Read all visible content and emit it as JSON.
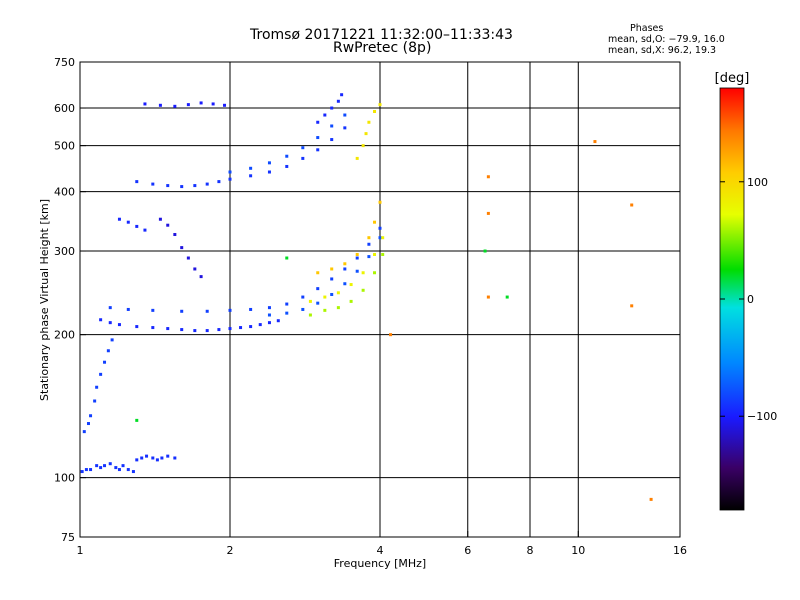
{
  "header": {
    "title": "Tromsø 20171221 11:32:00–11:33:43",
    "subtitle": "RwPretec (8p)"
  },
  "phase_stats": {
    "heading": "Phases",
    "line_o": "mean, sd,O: −79.9, 16.0",
    "line_x": "mean, sd,X:  96.2, 19.3"
  },
  "chart_data": {
    "type": "scatter",
    "title": "Tromsø 20171221 11:32:00–11:33:43",
    "subtitle": "RwPretec (8p)",
    "xlabel": "Frequency [MHz]",
    "ylabel": "Stationary phase Virtual Height [km]",
    "x_scale": "log",
    "y_scale": "log",
    "xlim": [
      1,
      16
    ],
    "ylim": [
      75,
      750
    ],
    "x_ticks": [
      1,
      2,
      4,
      6,
      8,
      10,
      16
    ],
    "x_tick_labels": [
      "1",
      "2",
      "4",
      "6",
      "8",
      "10",
      "16"
    ],
    "y_ticks": [
      75,
      100,
      200,
      300,
      400,
      500,
      600,
      750
    ],
    "y_tick_labels": [
      "75",
      "100",
      "200",
      "300",
      "400",
      "500",
      "600",
      "750"
    ],
    "grid_x": [
      2,
      4,
      6,
      8,
      10
    ],
    "grid_y": [
      100,
      200,
      300,
      400,
      500,
      600
    ],
    "grid": true,
    "colorbar": {
      "label": "[deg]",
      "range": [
        -180,
        180
      ],
      "ticks": [
        100,
        0,
        -100
      ],
      "tick_labels": [
        "100",
        "0",
        "−100"
      ]
    },
    "series": [
      {
        "phase": -90,
        "points": [
          [
            1.01,
            103
          ],
          [
            1.03,
            104
          ],
          [
            1.05,
            104
          ],
          [
            1.08,
            106
          ],
          [
            1.1,
            105
          ],
          [
            1.12,
            106
          ],
          [
            1.15,
            107
          ],
          [
            1.18,
            105
          ],
          [
            1.2,
            104
          ],
          [
            1.22,
            106
          ],
          [
            1.25,
            104
          ],
          [
            1.28,
            103
          ]
        ]
      },
      {
        "phase": -85,
        "points": [
          [
            1.02,
            125
          ],
          [
            1.04,
            130
          ],
          [
            1.05,
            135
          ],
          [
            1.07,
            145
          ],
          [
            1.08,
            155
          ],
          [
            1.1,
            165
          ],
          [
            1.12,
            175
          ],
          [
            1.14,
            185
          ],
          [
            1.16,
            195
          ]
        ]
      },
      {
        "phase": -92,
        "points": [
          [
            1.3,
            109
          ],
          [
            1.33,
            110
          ],
          [
            1.36,
            111
          ],
          [
            1.4,
            110
          ],
          [
            1.43,
            109
          ],
          [
            1.46,
            110
          ],
          [
            1.5,
            111
          ],
          [
            1.55,
            110
          ]
        ]
      },
      {
        "phase": -95,
        "points": [
          [
            1.1,
            215
          ],
          [
            1.15,
            212
          ],
          [
            1.2,
            210
          ],
          [
            1.3,
            208
          ],
          [
            1.4,
            207
          ],
          [
            1.5,
            206
          ],
          [
            1.6,
            205
          ],
          [
            1.7,
            204
          ],
          [
            1.8,
            204
          ],
          [
            1.9,
            205
          ],
          [
            2.0,
            206
          ],
          [
            2.1,
            207
          ],
          [
            2.2,
            208
          ],
          [
            2.3,
            210
          ],
          [
            2.4,
            212
          ],
          [
            2.5,
            214
          ]
        ]
      },
      {
        "phase": -85,
        "points": [
          [
            1.15,
            228
          ],
          [
            1.25,
            226
          ],
          [
            1.4,
            225
          ],
          [
            1.6,
            224
          ],
          [
            1.8,
            224
          ],
          [
            2.0,
            225
          ],
          [
            2.2,
            226
          ],
          [
            2.4,
            228
          ],
          [
            2.6,
            232
          ],
          [
            2.8,
            240
          ],
          [
            3.0,
            250
          ],
          [
            3.2,
            262
          ],
          [
            3.4,
            275
          ],
          [
            3.6,
            290
          ],
          [
            3.8,
            310
          ],
          [
            4.0,
            335
          ]
        ]
      },
      {
        "phase": -78,
        "points": [
          [
            2.4,
            220
          ],
          [
            2.6,
            222
          ],
          [
            2.8,
            226
          ],
          [
            3.0,
            233
          ],
          [
            3.2,
            243
          ],
          [
            3.4,
            256
          ],
          [
            3.6,
            272
          ],
          [
            3.8,
            292
          ],
          [
            4.0,
            320
          ]
        ]
      },
      {
        "phase": -90,
        "points": [
          [
            1.3,
            420
          ],
          [
            1.4,
            415
          ],
          [
            1.5,
            412
          ],
          [
            1.6,
            410
          ],
          [
            1.7,
            412
          ],
          [
            1.8,
            415
          ],
          [
            1.9,
            420
          ],
          [
            2.0,
            425
          ],
          [
            2.2,
            432
          ],
          [
            2.4,
            440
          ],
          [
            2.6,
            452
          ],
          [
            2.8,
            470
          ],
          [
            3.0,
            490
          ],
          [
            3.2,
            515
          ],
          [
            3.4,
            545
          ]
        ]
      },
      {
        "phase": -80,
        "points": [
          [
            2.0,
            440
          ],
          [
            2.2,
            448
          ],
          [
            2.4,
            460
          ],
          [
            2.6,
            475
          ],
          [
            2.8,
            495
          ],
          [
            3.0,
            520
          ],
          [
            3.2,
            550
          ],
          [
            3.4,
            580
          ]
        ]
      },
      {
        "phase": -95,
        "points": [
          [
            3.0,
            560
          ],
          [
            3.1,
            580
          ],
          [
            3.2,
            600
          ],
          [
            3.3,
            620
          ],
          [
            3.35,
            640
          ]
        ]
      },
      {
        "phase": -100,
        "points": [
          [
            1.35,
            612
          ],
          [
            1.45,
            608
          ],
          [
            1.55,
            605
          ],
          [
            1.65,
            610
          ],
          [
            1.75,
            615
          ],
          [
            1.85,
            612
          ],
          [
            1.95,
            608
          ]
        ]
      },
      {
        "phase": -110,
        "points": [
          [
            1.45,
            350
          ],
          [
            1.5,
            340
          ],
          [
            1.55,
            325
          ],
          [
            1.6,
            305
          ],
          [
            1.65,
            290
          ],
          [
            1.7,
            275
          ],
          [
            1.75,
            265
          ]
        ]
      },
      {
        "phase": -95,
        "points": [
          [
            1.2,
            350
          ],
          [
            1.25,
            345
          ],
          [
            1.3,
            338
          ],
          [
            1.35,
            332
          ]
        ]
      },
      {
        "phase": 80,
        "points": [
          [
            2.9,
            235
          ],
          [
            3.1,
            240
          ],
          [
            3.3,
            245
          ],
          [
            3.5,
            255
          ],
          [
            3.7,
            270
          ],
          [
            3.9,
            295
          ],
          [
            4.05,
            320
          ]
        ]
      },
      {
        "phase": 60,
        "points": [
          [
            2.9,
            220
          ],
          [
            3.1,
            225
          ],
          [
            3.3,
            228
          ],
          [
            3.5,
            235
          ],
          [
            3.7,
            248
          ],
          [
            3.9,
            270
          ],
          [
            4.05,
            295
          ]
        ]
      },
      {
        "phase": 110,
        "points": [
          [
            3.0,
            270
          ],
          [
            3.2,
            275
          ],
          [
            3.4,
            282
          ],
          [
            3.6,
            295
          ],
          [
            3.8,
            320
          ],
          [
            3.9,
            345
          ],
          [
            4.0,
            380
          ]
        ]
      },
      {
        "phase": 90,
        "points": [
          [
            3.6,
            470
          ],
          [
            3.7,
            500
          ],
          [
            3.75,
            530
          ],
          [
            3.8,
            560
          ],
          [
            3.9,
            590
          ],
          [
            4.0,
            610
          ]
        ]
      },
      {
        "phase": 140,
        "points": [
          [
            6.6,
            240
          ],
          [
            6.6,
            360
          ],
          [
            6.6,
            430
          ],
          [
            10.8,
            510
          ],
          [
            12.8,
            375
          ],
          [
            12.8,
            230
          ],
          [
            14.0,
            90
          ],
          [
            4.2,
            200
          ]
        ]
      },
      {
        "phase": 20,
        "points": [
          [
            7.2,
            240
          ],
          [
            6.5,
            300
          ],
          [
            1.3,
            132
          ],
          [
            2.6,
            290
          ]
        ]
      }
    ]
  }
}
